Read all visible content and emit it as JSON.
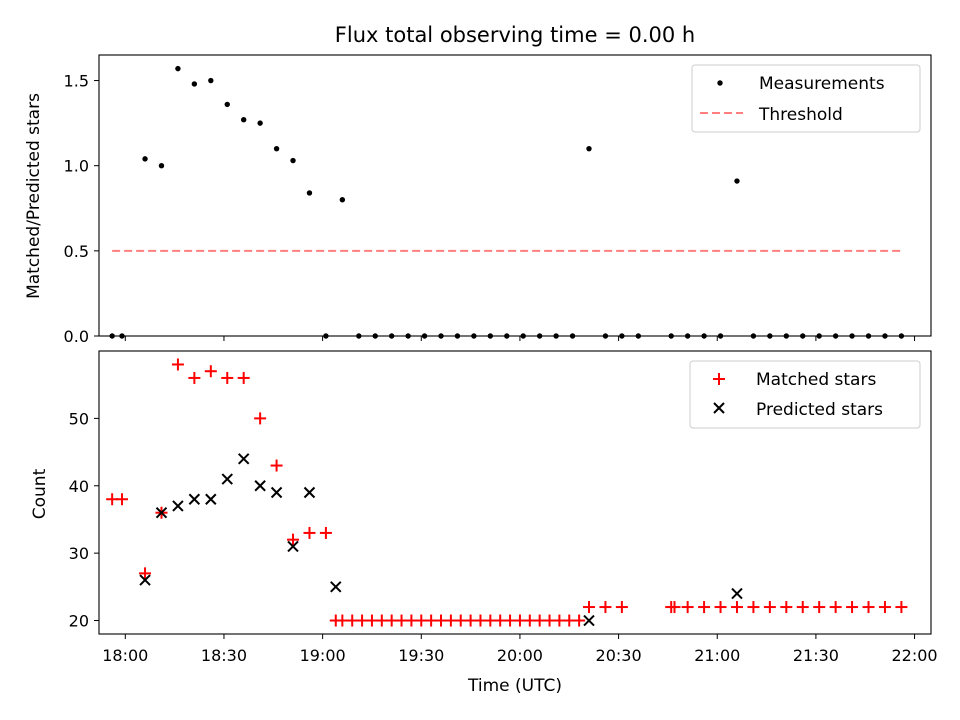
{
  "title": "Flux total observing time = 0.00 h",
  "xlabel": "Time (UTC)",
  "xticks": [
    {
      "label": "18:00",
      "t": 1080
    },
    {
      "label": "18:30",
      "t": 1110
    },
    {
      "label": "19:00",
      "t": 1140
    },
    {
      "label": "19:30",
      "t": 1170
    },
    {
      "label": "20:00",
      "t": 1200
    },
    {
      "label": "20:30",
      "t": 1230
    },
    {
      "label": "21:00",
      "t": 1260
    },
    {
      "label": "21:30",
      "t": 1290
    },
    {
      "label": "22:00",
      "t": 1320
    }
  ],
  "chart_data": [
    {
      "type": "scatter",
      "panel": "top",
      "ylabel": "Matched/Predicted stars",
      "xlim": [
        "17:52",
        "22:05"
      ],
      "ylim": [
        0,
        1.65
      ],
      "yticks": [
        "0.0",
        "0.5",
        "1.0",
        "1.5"
      ],
      "legend_position": "top-right",
      "threshold": {
        "name": "Threshold",
        "value": 0.5,
        "x_range": [
          "17:56",
          "21:56"
        ],
        "color": "#ff7f7f"
      },
      "series": [
        {
          "name": "Measurements",
          "color": "#000000",
          "x": [
            "17:56",
            "17:59",
            "18:06",
            "18:11",
            "18:16",
            "18:21",
            "18:26",
            "18:31",
            "18:36",
            "18:41",
            "18:46",
            "18:51",
            "18:56",
            "19:01",
            "19:06",
            "19:11",
            "19:16",
            "19:21",
            "19:26",
            "19:31",
            "19:36",
            "19:41",
            "19:46",
            "19:51",
            "19:56",
            "20:01",
            "20:06",
            "20:11",
            "20:16",
            "20:21",
            "20:26",
            "20:31",
            "20:36",
            "20:46",
            "20:51",
            "20:56",
            "21:01",
            "21:06",
            "21:11",
            "21:16",
            "21:21",
            "21:26",
            "21:31",
            "21:36",
            "21:41",
            "21:46",
            "21:51",
            "21:56"
          ],
          "y": [
            0,
            0,
            1.04,
            1.0,
            1.57,
            1.48,
            1.5,
            1.36,
            1.27,
            1.25,
            1.1,
            1.03,
            0.84,
            0,
            0.8,
            0,
            0,
            0,
            0,
            0,
            0,
            0,
            0,
            0,
            0,
            0,
            0,
            0,
            0,
            1.1,
            0,
            0,
            0,
            0,
            0,
            0,
            0,
            0.91,
            0,
            0,
            0,
            0,
            0,
            0,
            0,
            0,
            0,
            0
          ]
        }
      ]
    },
    {
      "type": "scatter",
      "panel": "bottom",
      "ylabel": "Count",
      "xlim": [
        "17:52",
        "22:05"
      ],
      "ylim": [
        18,
        60
      ],
      "yticks": [
        "20",
        "30",
        "40",
        "50"
      ],
      "legend_position": "top-right",
      "series": [
        {
          "name": "Matched stars",
          "marker": "+",
          "color": "#ff0000",
          "x": [
            "17:56",
            "17:59",
            "18:06",
            "18:11",
            "18:16",
            "18:21",
            "18:26",
            "18:31",
            "18:36",
            "18:41",
            "18:46",
            "18:51",
            "18:56",
            "19:01",
            "19:04",
            "19:06",
            "19:09",
            "19:12",
            "19:15",
            "19:18",
            "19:21",
            "19:24",
            "19:27",
            "19:30",
            "19:33",
            "19:36",
            "19:39",
            "19:42",
            "19:45",
            "19:48",
            "19:51",
            "19:54",
            "19:57",
            "20:00",
            "20:03",
            "20:06",
            "20:09",
            "20:12",
            "20:15",
            "20:18",
            "20:21",
            "20:26",
            "20:31",
            "20:46",
            "20:47",
            "20:51",
            "20:56",
            "21:01",
            "21:06",
            "21:11",
            "21:16",
            "21:21",
            "21:26",
            "21:31",
            "21:36",
            "21:41",
            "21:46",
            "21:51",
            "21:56"
          ],
          "y": [
            38,
            38,
            27,
            36,
            58,
            56,
            57,
            56,
            56,
            50,
            43,
            32,
            33,
            33,
            20,
            20,
            20,
            20,
            20,
            20,
            20,
            20,
            20,
            20,
            20,
            20,
            20,
            20,
            20,
            20,
            20,
            20,
            20,
            20,
            20,
            20,
            20,
            20,
            20,
            20,
            22,
            22,
            22,
            22,
            22,
            22,
            22,
            22,
            22,
            22,
            22,
            22,
            22,
            22,
            22,
            22,
            22,
            22,
            22
          ]
        },
        {
          "name": "Predicted stars",
          "marker": "x",
          "color": "#000000",
          "x": [
            "18:06",
            "18:11",
            "18:16",
            "18:21",
            "18:26",
            "18:31",
            "18:36",
            "18:41",
            "18:46",
            "18:51",
            "18:56",
            "19:04",
            "20:21",
            "21:06"
          ],
          "y": [
            26,
            36,
            37,
            38,
            38,
            41,
            44,
            40,
            39,
            31,
            39,
            25,
            20,
            24
          ]
        }
      ]
    }
  ]
}
